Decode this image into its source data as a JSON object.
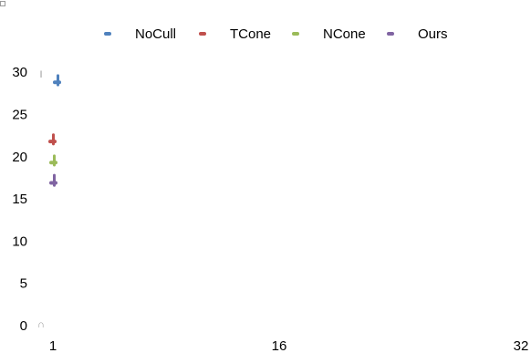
{
  "chart_data": {
    "type": "scatter",
    "title": "",
    "xlabel": "",
    "ylabel": "",
    "x_ticks": [
      "1",
      "16",
      "32"
    ],
    "y_ticks": [
      "0",
      "5",
      "10",
      "15",
      "20",
      "25",
      "30"
    ],
    "ylim": [
      0,
      32.5
    ],
    "grid": false,
    "legend_position": "top",
    "series": [
      {
        "name": "NoCull",
        "color": "#4f81bd",
        "x": 1,
        "y": 28.8,
        "err_low": 28.5,
        "err_high": 29.6
      },
      {
        "name": "TCone",
        "color": "#c0504d",
        "x": 1,
        "y": 21.8,
        "err_low": 21.5,
        "err_high": 22.6
      },
      {
        "name": "NCone",
        "color": "#9bbb59",
        "x": 1,
        "y": 19.3,
        "err_low": 19.0,
        "err_high": 20.1
      },
      {
        "name": "Ours",
        "color": "#8064a2",
        "x": 1,
        "y": 16.9,
        "err_low": 16.6,
        "err_high": 17.8
      }
    ],
    "annotations": [
      {
        "label": "I",
        "x": 1,
        "y": 29.8,
        "color": "#9a9a9a"
      },
      {
        "label": "∩",
        "x": 1,
        "y": 0.2,
        "color": "#9a9a9a"
      }
    ]
  }
}
